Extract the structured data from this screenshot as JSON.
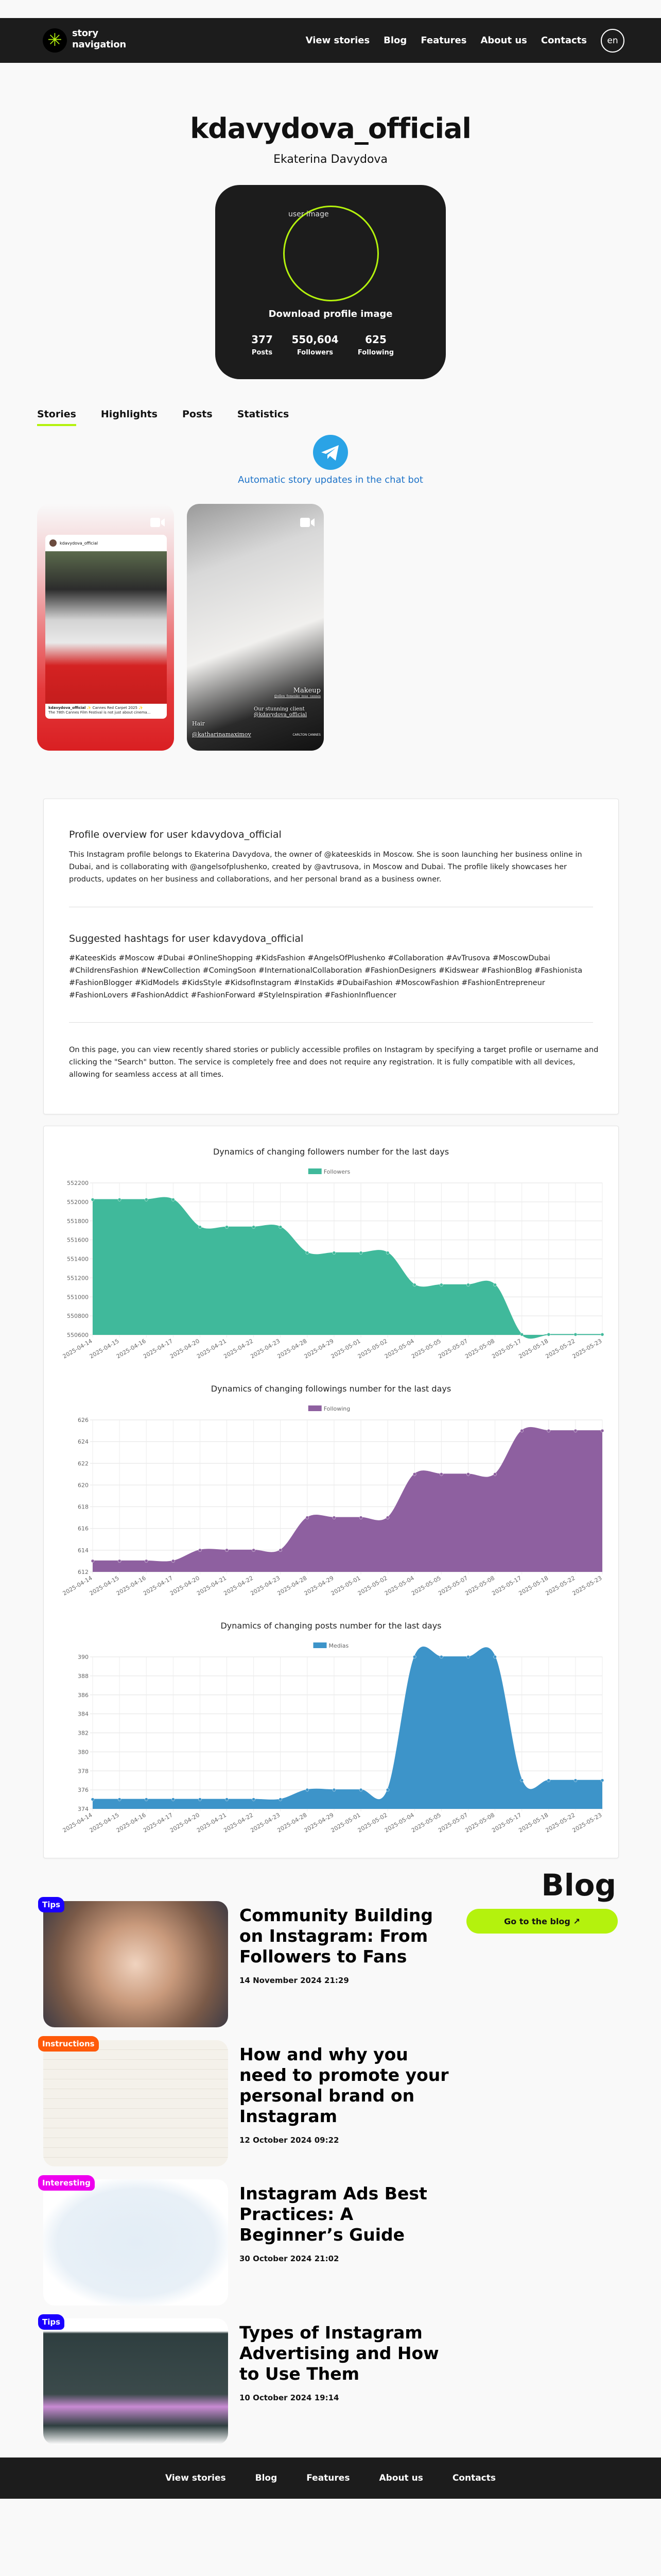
{
  "header": {
    "logo_line1": "story",
    "logo_line2": "navigation",
    "nav": [
      "View stories",
      "Blog",
      "Features",
      "About us",
      "Contacts"
    ],
    "lang": "en"
  },
  "profile": {
    "username": "kdavydova_official",
    "full_name": "Ekaterina Davydova",
    "image_alt": "user image",
    "download_label": "Download profile image",
    "stats": [
      {
        "value": "377",
        "label": "Posts"
      },
      {
        "value": "550,604",
        "label": "Followers"
      },
      {
        "value": "625",
        "label": "Following"
      }
    ]
  },
  "tabs": [
    "Stories",
    "Highlights",
    "Posts",
    "Statistics"
  ],
  "telegram": {
    "label": "Automatic story updates in the chat bot"
  },
  "stories": [
    {
      "username": "kdavydova_official",
      "caption_user": "kdavydova_official",
      "caption_title": "✨ Cannes Red Carpet 2025 ✨",
      "caption_text": "The 78th Cannes Film Festival is not just about cinema..."
    },
    {
      "makeup_label": "Makeup",
      "makeup_handle": "@ellen_fomenko_mua_cannes",
      "client_label": "Our stunning client",
      "client_handle": "@kdavydova_official",
      "hair_label": "Hair",
      "hair_handle": "@katharinamaximov",
      "location": "CARLTON CANNES"
    }
  ],
  "about": {
    "overview_title": "Profile overview for user kdavydova_official",
    "overview_text": "This Instagram profile belongs to Ekaterina Davydova, the owner of @kateeskids in Moscow. She is soon launching her business online in Dubai, and is collaborating with @angelsofplushenko, created by @avtrusova, in Moscow and Dubai. The profile likely showcases her products, updates on her business and collaborations, and her personal brand as a business owner.",
    "hashtags_title": "Suggested hashtags for user kdavydova_official",
    "hashtags_text": "#KateesKids #Moscow #Dubai #OnlineShopping #KidsFashion #AngelsOfPlushenko #Collaboration #AvTrusova #MoscowDubai #ChildrensFashion #NewCollection #ComingSoon #InternationalCollaboration #FashionDesigners #Kidswear #FashionBlog #Fashionista #FashionBlogger #KidModels #KidsStyle #KidsofInstagram #InstaKids #DubaiFashion #MoscowFashion #FashionEntrepreneur #FashionLovers #FashionAddict #FashionForward #StyleInspiration #FashionInfluencer",
    "info_text": "On this page, you can view recently shared stories or publicly accessible profiles on Instagram by specifying a target profile or username and clicking the \"Search\" button. The service is completely free and does not require any registration. It is fully compatible with all devices, allowing for seamless access at all times."
  },
  "chart_data": [
    {
      "type": "area",
      "title": "Dynamics of changing followers number for the last days",
      "series_name": "Followers",
      "color": "#40b99b",
      "x": [
        "2025-04-14",
        "2025-04-15",
        "2025-04-16",
        "2025-04-17",
        "2025-04-20",
        "2025-04-21",
        "2025-04-22",
        "2025-04-23",
        "2025-04-28",
        "2025-04-29",
        "2025-05-01",
        "2025-05-02",
        "2025-05-04",
        "2025-05-05",
        "2025-05-07",
        "2025-05-08",
        "2025-05-17",
        "2025-05-18",
        "2025-05-22",
        "2025-05-23"
      ],
      "values": [
        552024,
        552024,
        552024,
        552024,
        551735,
        551735,
        551735,
        551735,
        551464,
        551464,
        551464,
        551464,
        551127,
        551127,
        551127,
        551127,
        550604,
        550604,
        550604,
        550604
      ],
      "ylim": [
        550600,
        552200
      ],
      "ystep": 200,
      "grid": true,
      "legend": "top-center"
    },
    {
      "type": "area",
      "title": "Dynamics of changing followings number for the last days",
      "series_name": "Following",
      "color": "#8e60a0",
      "x": [
        "2025-04-14",
        "2025-04-15",
        "2025-04-16",
        "2025-04-17",
        "2025-04-20",
        "2025-04-21",
        "2025-04-22",
        "2025-04-23",
        "2025-04-28",
        "2025-04-29",
        "2025-05-01",
        "2025-05-02",
        "2025-05-04",
        "2025-05-05",
        "2025-05-07",
        "2025-05-08",
        "2025-05-17",
        "2025-05-18",
        "2025-05-22",
        "2025-05-23"
      ],
      "values": [
        613,
        613,
        613,
        613,
        614,
        614,
        614,
        614,
        617,
        617,
        617,
        617,
        621,
        621,
        621,
        621,
        625,
        625,
        625,
        625
      ],
      "ylim": [
        612,
        626
      ],
      "ystep": 2,
      "grid": true,
      "legend": "top-center"
    },
    {
      "type": "area",
      "title": "Dynamics of changing posts number for the last days",
      "series_name": "Medias",
      "color": "#3d94c9",
      "x": [
        "2025-04-14",
        "2025-04-15",
        "2025-04-16",
        "2025-04-17",
        "2025-04-20",
        "2025-04-21",
        "2025-04-22",
        "2025-04-23",
        "2025-04-28",
        "2025-04-29",
        "2025-05-01",
        "2025-05-02",
        "2025-05-04",
        "2025-05-05",
        "2025-05-07",
        "2025-05-08",
        "2025-05-17",
        "2025-05-18",
        "2025-05-22",
        "2025-05-23"
      ],
      "values": [
        375,
        375,
        375,
        375,
        375,
        375,
        375,
        375,
        376,
        376,
        376,
        376,
        390,
        390,
        390,
        390,
        377,
        377,
        377,
        377
      ],
      "ylim": [
        374,
        390
      ],
      "ystep": 2,
      "grid": true,
      "legend": "top-center"
    }
  ],
  "blog": {
    "title": "Blog",
    "button_label": "Go to the blog",
    "button_icon": "arrow-icon",
    "posts": [
      {
        "tag": "Tips",
        "tag_color": "#1a00ff",
        "title": "Community Building on Instagram: From Followers to Fans",
        "date": "14 November 2024 21:29"
      },
      {
        "tag": "Instructions",
        "tag_color": "#ff5a0a",
        "title": "How and why you need to promote your personal brand on Instagram",
        "date": "12 October 2024 09:22"
      },
      {
        "tag": "Interesting",
        "tag_color": "#ee00ee",
        "title": "Instagram Ads Best Practices: A Beginner’s Guide",
        "date": "30 October 2024 21:02"
      },
      {
        "tag": "Tips",
        "tag_color": "#1a00ff",
        "title": "Types of Instagram Advertising and How to Use Them",
        "date": "10 October 2024 19:14"
      }
    ]
  },
  "footer": {
    "nav": [
      "View stories",
      "Blog",
      "Features",
      "About us",
      "Contacts"
    ]
  },
  "colors": {
    "accent": "#b4f20d",
    "dark": "#1c1c1c",
    "telegram": "#2aa3e6",
    "link": "#1e73c8"
  }
}
